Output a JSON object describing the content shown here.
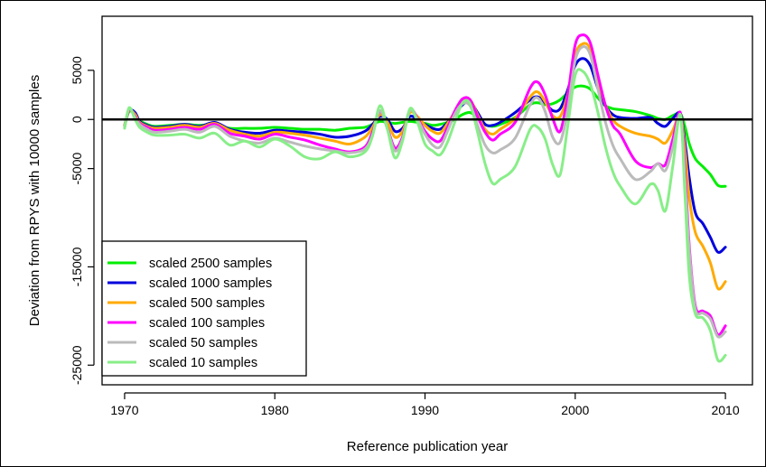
{
  "chart_data": {
    "type": "line",
    "title": "",
    "xlabel": "Reference publication year",
    "ylabel": "Deviation from RPYS with 10000 samples",
    "xlim": [
      1968.5,
      2011.8
    ],
    "ylim": [
      -27000,
      10500
    ],
    "xticks": [
      1970,
      1980,
      1990,
      2000,
      2010
    ],
    "yticks": [
      5000,
      0,
      -5000,
      -15000,
      -25000
    ],
    "xtick_labels": [
      "1970",
      "1980",
      "1990",
      "2000",
      "2010"
    ],
    "ytick_labels": [
      "5000",
      "0",
      "-5000",
      "-15000",
      "-25000"
    ],
    "reference_line": 0,
    "grid": false,
    "legend_position": "bottom-left",
    "x": [
      1970,
      1970.3,
      1970.7,
      1971,
      1971.5,
      1972,
      1973,
      1974,
      1975,
      1976,
      1977,
      1978,
      1979,
      1980,
      1981,
      1982,
      1983,
      1984,
      1985,
      1986,
      1986.5,
      1987,
      1987.5,
      1988,
      1988.5,
      1989,
      1989.5,
      1990,
      1990.5,
      1991,
      1991.5,
      1992,
      1992.5,
      1993,
      1993.5,
      1994,
      1994.5,
      1995,
      1996,
      1997,
      1997.5,
      1998,
      1998.5,
      1999,
      1999.5,
      2000,
      2000.5,
      2001,
      2001.5,
      2002,
      2002.5,
      2003,
      2004,
      2005,
      2005.5,
      2006,
      2006.5,
      2007,
      2007.3,
      2007.6,
      2008,
      2008.5,
      2009,
      2009.5,
      2010
    ],
    "series": [
      {
        "name": "scaled 2500 samples",
        "color": "#00ee00",
        "values": [
          -600,
          800,
          600,
          -100,
          -500,
          -700,
          -600,
          -500,
          -600,
          -500,
          -900,
          -900,
          -900,
          -800,
          -900,
          -1000,
          -1000,
          -1100,
          -900,
          -800,
          -500,
          -200,
          -300,
          -400,
          -300,
          -200,
          -300,
          -400,
          -600,
          -500,
          -300,
          0,
          500,
          700,
          200,
          -500,
          -700,
          -500,
          200,
          1500,
          1700,
          1500,
          1600,
          2000,
          2700,
          3300,
          3400,
          3100,
          2200,
          1400,
          1100,
          1000,
          800,
          400,
          100,
          0,
          400,
          600,
          -700,
          -2500,
          -4000,
          -4800,
          -5600,
          -6700,
          -6800
        ]
      },
      {
        "name": "scaled 1000 samples",
        "color": "#0000dd",
        "values": [
          -600,
          900,
          700,
          -200,
          -600,
          -800,
          -700,
          -500,
          -700,
          -300,
          -1000,
          -1300,
          -1400,
          -1100,
          -1200,
          -1300,
          -1500,
          -1800,
          -1700,
          -1200,
          -500,
          300,
          0,
          -1200,
          -900,
          300,
          0,
          -500,
          -900,
          -1000,
          -300,
          600,
          1500,
          1800,
          700,
          -500,
          -600,
          -300,
          700,
          2000,
          2300,
          1700,
          900,
          1100,
          3000,
          5500,
          6200,
          5500,
          3200,
          1400,
          500,
          200,
          100,
          200,
          -400,
          -700,
          100,
          600,
          -2200,
          -6000,
          -9500,
          -10600,
          -12000,
          -13500,
          -13000
        ]
      },
      {
        "name": "scaled 500 samples",
        "color": "#ffaa00",
        "values": [
          -600,
          900,
          500,
          -300,
          -700,
          -900,
          -800,
          -600,
          -800,
          -400,
          -1100,
          -1500,
          -1700,
          -1300,
          -1400,
          -1600,
          -1900,
          -2200,
          -2500,
          -1800,
          -800,
          500,
          -300,
          -1800,
          -1200,
          700,
          300,
          -600,
          -1200,
          -1400,
          -400,
          800,
          1800,
          2000,
          500,
          -1000,
          -1500,
          -1000,
          100,
          2300,
          2800,
          1800,
          400,
          300,
          2600,
          6600,
          7700,
          7200,
          4200,
          1500,
          0,
          -700,
          -1400,
          -1700,
          -2000,
          -2400,
          -1100,
          400,
          -3000,
          -8000,
          -11500,
          -12900,
          -14600,
          -17200,
          -16500
        ]
      },
      {
        "name": "scaled 100 samples",
        "color": "#ff00ff",
        "values": [
          -800,
          1000,
          300,
          -400,
          -800,
          -1100,
          -1000,
          -800,
          -1000,
          -500,
          -1400,
          -1700,
          -2000,
          -1500,
          -1800,
          -2100,
          -2600,
          -3000,
          -3300,
          -2800,
          -1300,
          800,
          -900,
          -2900,
          -1800,
          1000,
          100,
          -1200,
          -2000,
          -2200,
          -800,
          900,
          2100,
          2000,
          300,
          -1300,
          -2100,
          -1500,
          -300,
          3200,
          3800,
          2500,
          100,
          -1200,
          2400,
          7600,
          8600,
          7800,
          4600,
          1500,
          -600,
          -1500,
          -4200,
          -4900,
          -4500,
          -4600,
          -2000,
          700,
          -5000,
          -13000,
          -19000,
          -19500,
          -20000,
          -21900,
          -21000
        ]
      },
      {
        "name": "scaled 50 samples",
        "color": "#bbbbbb",
        "values": [
          -800,
          1100,
          200,
          -500,
          -1000,
          -1300,
          -1200,
          -1000,
          -1300,
          -700,
          -1700,
          -2200,
          -2400,
          -1900,
          -2300,
          -2700,
          -3000,
          -3200,
          -3400,
          -3000,
          -1600,
          900,
          -1000,
          -3200,
          -2000,
          900,
          0,
          -1500,
          -2600,
          -2800,
          -1200,
          600,
          1600,
          1400,
          -600,
          -2600,
          -3400,
          -3100,
          -1900,
          1500,
          2200,
          800,
          -1800,
          -2300,
          1000,
          6000,
          7400,
          6600,
          3200,
          -200,
          -2600,
          -4000,
          -6100,
          -5300,
          -4500,
          -5200,
          -2800,
          400,
          -6000,
          -13500,
          -19300,
          -19700,
          -20300,
          -22100,
          -21600
        ]
      },
      {
        "name": "scaled 10 samples",
        "color": "#88ee88",
        "values": [
          -900,
          1200,
          0,
          -800,
          -1300,
          -1600,
          -1600,
          -1500,
          -1900,
          -1400,
          -2600,
          -2200,
          -2800,
          -2000,
          -2700,
          -3800,
          -4000,
          -3300,
          -3800,
          -3300,
          -1700,
          1400,
          -1000,
          -3900,
          -2200,
          1100,
          -300,
          -2500,
          -3200,
          -3600,
          -2300,
          -200,
          1700,
          1600,
          -1300,
          -4500,
          -6500,
          -6100,
          -4800,
          -1000,
          -800,
          -2000,
          -4600,
          -5600,
          -700,
          4500,
          4900,
          3600,
          800,
          -2700,
          -5300,
          -6800,
          -8600,
          -6600,
          -7200,
          -9300,
          -4700,
          500,
          -7500,
          -16000,
          -19800,
          -20200,
          -21500,
          -24500,
          -24000
        ]
      }
    ]
  }
}
